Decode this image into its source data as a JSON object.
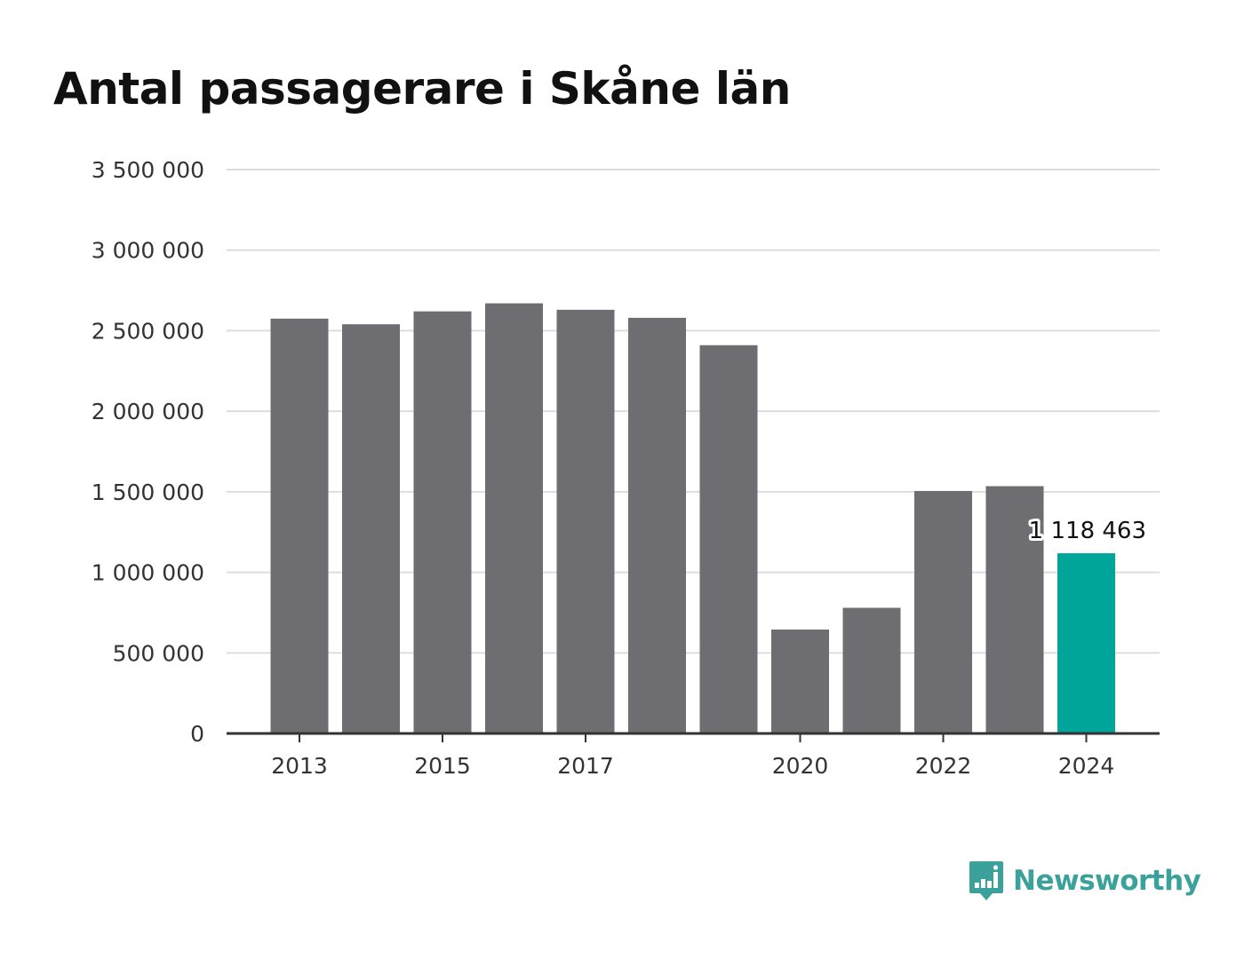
{
  "brand": {
    "name": "Newsworthy",
    "color": "#3aa29a",
    "icon": "bar-chart-speech-bubble-icon"
  },
  "chart_data": {
    "type": "bar",
    "title": "Antal passagerare i Skåne län",
    "xlabel": "",
    "ylabel": "",
    "categories": [
      "2013",
      "2014",
      "2015",
      "2016",
      "2017",
      "2018",
      "2019",
      "2020",
      "2021",
      "2022",
      "2023",
      "2024"
    ],
    "values": [
      2575000,
      2540000,
      2620000,
      2670000,
      2630000,
      2580000,
      2410000,
      645000,
      780000,
      1505000,
      1535000,
      1118463
    ],
    "x_tick_labels": [
      "2013",
      "2015",
      "2017",
      "2020",
      "2022",
      "2024"
    ],
    "y_tick_labels": [
      "0",
      "500 000",
      "1 000 000",
      "1 500 000",
      "2 000 000",
      "2 500 000",
      "3 000 000",
      "3 500 000"
    ],
    "y_ticks": [
      0,
      500000,
      1000000,
      1500000,
      2000000,
      2500000,
      3000000,
      3500000
    ],
    "ylim": [
      0,
      3500000
    ],
    "grid": true,
    "legend": "none",
    "highlight": {
      "category": "2024",
      "label": "1 118 463"
    },
    "colors": {
      "bar": "#6e6d72",
      "highlight": "#00a59a",
      "grid": "#dddddd",
      "axis": "#333333"
    }
  }
}
